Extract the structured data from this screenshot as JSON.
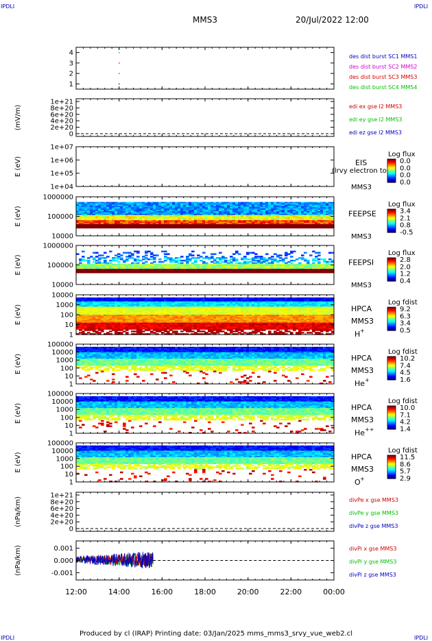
{
  "corner_label": "IPDLI",
  "header": {
    "spacecraft": "MMS3",
    "datetime": "20/Jul/2022 12:00"
  },
  "footer": {
    "text": "Produced by cl (IRAP)   Printing date: 03/Jan/2025   mms_mms3_srvy_vue_web2.cl"
  },
  "time_axis": {
    "ticks": [
      "12:00",
      "14:00",
      "16:00",
      "18:00",
      "20:00",
      "22:00",
      "00:00"
    ]
  },
  "colors": {
    "red": "#d00000",
    "magenta": "#d000d0",
    "green": "#00c000",
    "blue": "#0000c0"
  },
  "chart_data": [
    {
      "type": "scatter",
      "id": "des_dist",
      "ylabel": "",
      "ylim": [
        0.5,
        4.5
      ],
      "yticks": [
        "1",
        "2",
        "3",
        "4"
      ],
      "series": [
        {
          "name": "des dist burst SC1 MMS1",
          "color": "blue",
          "x": [
            "14:00"
          ],
          "values": [
            1
          ]
        },
        {
          "name": "des dist burst SC2 MMS2",
          "color": "magenta",
          "x": [
            "14:00"
          ],
          "values": [
            2
          ]
        },
        {
          "name": "des dist burst SC3 MMS3",
          "color": "red",
          "x": [
            "14:00"
          ],
          "values": [
            3
          ]
        },
        {
          "name": "des dist burst SC4 MMS4",
          "color": "green",
          "x": [
            "14:00"
          ],
          "values": [
            4
          ]
        }
      ]
    },
    {
      "type": "line",
      "id": "edi",
      "ylabel": "(mV/m)",
      "yticks": [
        "0",
        "2e+20",
        "4e+20",
        "6e+20",
        "8e+20",
        "1e+21"
      ],
      "zero_line": true,
      "series": [
        {
          "name": "edi ex gse l2 MMS3",
          "color": "red"
        },
        {
          "name": "edi ey gse l2 MMS3",
          "color": "green"
        },
        {
          "name": "edi ez gse l2 MMS3",
          "color": "blue"
        }
      ]
    },
    {
      "type": "heatmap",
      "id": "eis",
      "ylabel": "E (eV)",
      "yticks": [
        "1e+04",
        "1e+05",
        "1e+06",
        "1e+07"
      ],
      "instrument": "EIS",
      "overlay_label": "(lrvy electron to",
      "spacecraft": "MMS3",
      "colorbar": {
        "title": "Log flux",
        "ticks": [
          "0.0",
          "0.0",
          "0.0",
          "0.0"
        ]
      }
    },
    {
      "type": "heatmap",
      "id": "feepse",
      "ylabel": "E (eV)",
      "yticks": [
        "10000",
        "100000",
        "1000000"
      ],
      "instrument": "FEEPSE",
      "spacecraft": "MMS3",
      "colorbar": {
        "title": "Log flux",
        "ticks": [
          "3.4",
          "2.1",
          "0.8",
          "-0.5"
        ]
      }
    },
    {
      "type": "heatmap",
      "id": "feepsi",
      "ylabel": "E (eV)",
      "yticks": [
        "10000",
        "100000",
        "1000000"
      ],
      "instrument": "FEEPSI",
      "spacecraft": "MMS3",
      "colorbar": {
        "title": "Log flux",
        "ticks": [
          "2.8",
          "2.0",
          "1.2",
          "0.4"
        ]
      }
    },
    {
      "type": "heatmap",
      "id": "hpca_h",
      "ylabel": "E (eV)",
      "yticks": [
        "1",
        "10",
        "100",
        "1000",
        "10000"
      ],
      "instrument": "HPCA",
      "spacecraft": "MMS3",
      "species": "H",
      "charge": "+",
      "colorbar": {
        "title": "Log fdist",
        "ticks": [
          "9.2",
          "6.3",
          "3.4",
          "0.5"
        ]
      }
    },
    {
      "type": "heatmap",
      "id": "hpca_he1",
      "ylabel": "E (eV)",
      "yticks": [
        "1",
        "10",
        "100",
        "1000",
        "10000",
        "100000"
      ],
      "instrument": "HPCA",
      "spacecraft": "MMS3",
      "species": "He",
      "charge": "+",
      "colorbar": {
        "title": "Log fdist",
        "ticks": [
          "10.2",
          "7.4",
          "4.5",
          "1.6"
        ]
      }
    },
    {
      "type": "heatmap",
      "id": "hpca_he2",
      "ylabel": "E (eV)",
      "yticks": [
        "1",
        "10",
        "100",
        "1000",
        "10000",
        "100000"
      ],
      "instrument": "HPCA",
      "spacecraft": "MMS3",
      "species": "He",
      "charge": "++",
      "colorbar": {
        "title": "Log fdist",
        "ticks": [
          "10.0",
          "7.1",
          "4.2",
          "1.4"
        ]
      }
    },
    {
      "type": "heatmap",
      "id": "hpca_o",
      "ylabel": "E (eV)",
      "yticks": [
        "1",
        "10",
        "100",
        "1000",
        "10000",
        "100000"
      ],
      "instrument": "HPCA",
      "spacecraft": "MMS3",
      "species": "O",
      "charge": "+",
      "colorbar": {
        "title": "Log fdist",
        "ticks": [
          "11.5",
          "8.6",
          "5.7",
          "2.9"
        ]
      }
    },
    {
      "type": "line",
      "id": "divpe",
      "ylabel": "(nPa/km)",
      "yticks": [
        "0",
        "2e+20",
        "4e+20",
        "6e+20",
        "8e+20",
        "1e+21"
      ],
      "zero_line": true,
      "series": [
        {
          "name": "divPe x gse MMS3",
          "color": "red"
        },
        {
          "name": "divPe y gse MMS3",
          "color": "green"
        },
        {
          "name": "divPe z gse MMS3",
          "color": "blue"
        }
      ]
    },
    {
      "type": "line",
      "id": "divpi",
      "ylabel": "(nPa/km)",
      "ylim": [
        -0.0016,
        0.0016
      ],
      "yticks": [
        "-0.001",
        "0.000",
        "0.001"
      ],
      "zero_line": true,
      "data_range": [
        "12:00",
        "15:35"
      ],
      "series": [
        {
          "name": "divPi x gse MMS3",
          "color": "red"
        },
        {
          "name": "divPi y gse MMS3",
          "color": "green"
        },
        {
          "name": "divPi z gse MMS3",
          "color": "blue"
        }
      ]
    }
  ]
}
